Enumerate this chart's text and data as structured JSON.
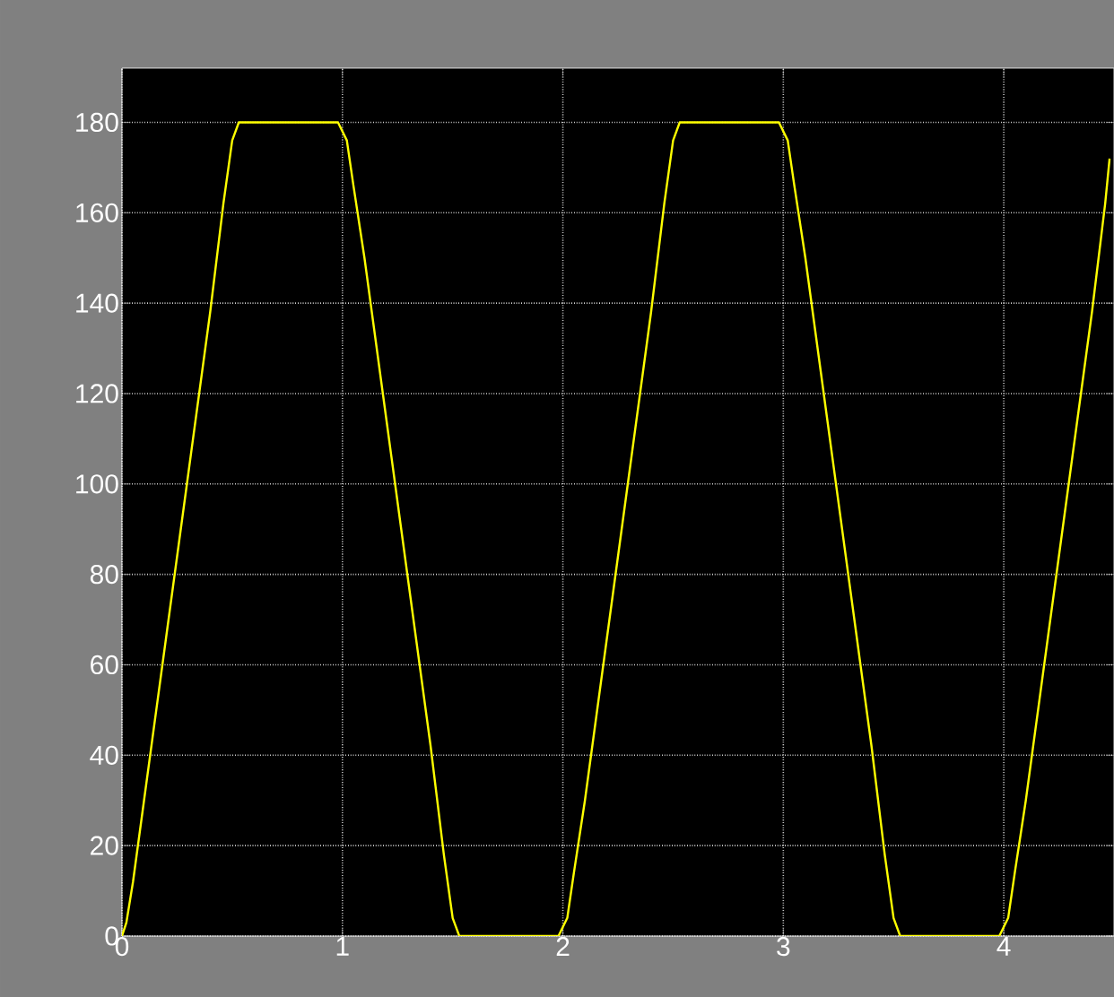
{
  "chart_data": {
    "type": "line",
    "x": [
      0,
      0.02,
      0.05,
      0.1,
      0.2,
      0.3,
      0.4,
      0.46,
      0.5,
      0.53,
      0.98,
      1.02,
      1.05,
      1.1,
      1.2,
      1.3,
      1.4,
      1.46,
      1.5,
      1.53,
      1.98,
      2.02,
      2.05,
      2.1,
      2.2,
      2.3,
      2.4,
      2.46,
      2.5,
      2.53,
      2.98,
      3.02,
      3.05,
      3.1,
      3.2,
      3.3,
      3.4,
      3.46,
      3.5,
      3.53,
      3.98,
      4.02,
      4.05,
      4.1,
      4.2,
      4.3,
      4.4,
      4.46,
      4.48
    ],
    "values": [
      0,
      3,
      12,
      30,
      66,
      102,
      138,
      162,
      176,
      180,
      180,
      176,
      166,
      150,
      114,
      78,
      42,
      18,
      4,
      0,
      0,
      4,
      14,
      30,
      66,
      102,
      138,
      162,
      176,
      180,
      180,
      176,
      166,
      150,
      114,
      78,
      42,
      18,
      4,
      0,
      0,
      4,
      14,
      30,
      66,
      102,
      138,
      162,
      172
    ],
    "color": "#ffff00",
    "line_style": "solid",
    "xlim": [
      0,
      4.5
    ],
    "ylim": [
      0,
      192
    ],
    "xticks": [
      0,
      1,
      2,
      3,
      4
    ],
    "yticks": [
      0,
      20,
      40,
      60,
      80,
      100,
      120,
      140,
      160,
      180
    ],
    "grid": true
  }
}
